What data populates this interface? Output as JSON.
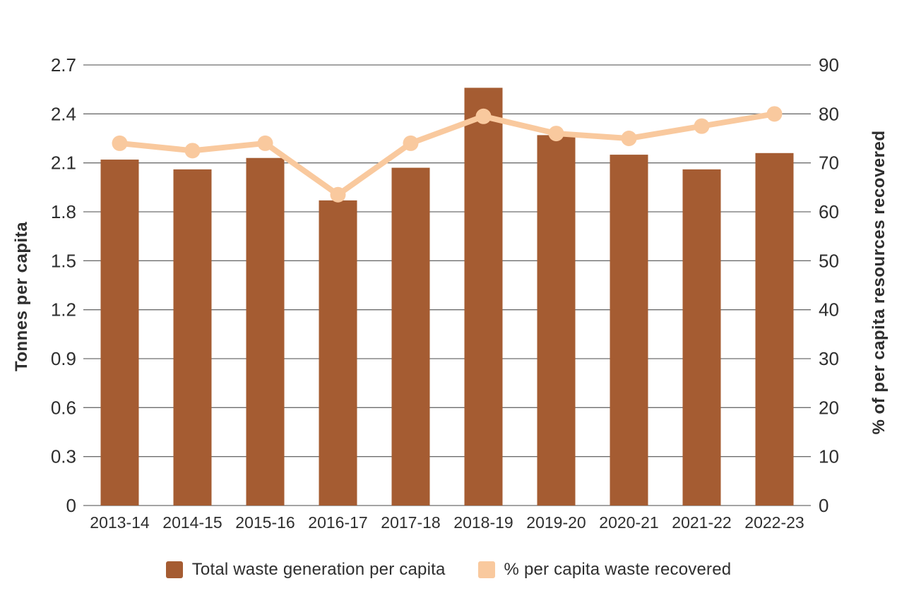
{
  "chart_data": {
    "type": "combo_bar_line",
    "title": "",
    "categories": [
      "2013-14",
      "2014-15",
      "2015-16",
      "2016-17",
      "2017-18",
      "2018-19",
      "2019-20",
      "2020-21",
      "2021-22",
      "2022-23"
    ],
    "series": [
      {
        "name": "Total waste generation per capita",
        "type": "bar",
        "axis": "left",
        "color": "#A55C32",
        "values": [
          2.12,
          2.06,
          2.13,
          1.87,
          2.07,
          2.56,
          2.27,
          2.15,
          2.06,
          2.16
        ]
      },
      {
        "name": "% per capita waste recovered",
        "type": "line",
        "axis": "right",
        "color": "#F9C99E",
        "values": [
          74,
          72.5,
          74,
          63.5,
          74,
          79.5,
          76,
          75,
          77.5,
          80
        ]
      }
    ],
    "left_axis": {
      "label": "Tonnes per capita",
      "min": 0,
      "max": 2.7,
      "step": 0.3,
      "tick_labels": [
        "0",
        "0.3",
        "0.6",
        "0.9",
        "1.2",
        "1.5",
        "1.8",
        "2.1",
        "2.4",
        "2.7"
      ]
    },
    "right_axis": {
      "label": "% of per capita resources recovered",
      "min": 0,
      "max": 90,
      "step": 10,
      "tick_labels": [
        "0",
        "10",
        "20",
        "30",
        "40",
        "50",
        "60",
        "70",
        "80",
        "90"
      ]
    },
    "grid": true,
    "legend_position": "bottom",
    "colors": {
      "grid": "#6E6E6E",
      "text": "#2E2E2E",
      "background": "#FFFFFF"
    }
  }
}
